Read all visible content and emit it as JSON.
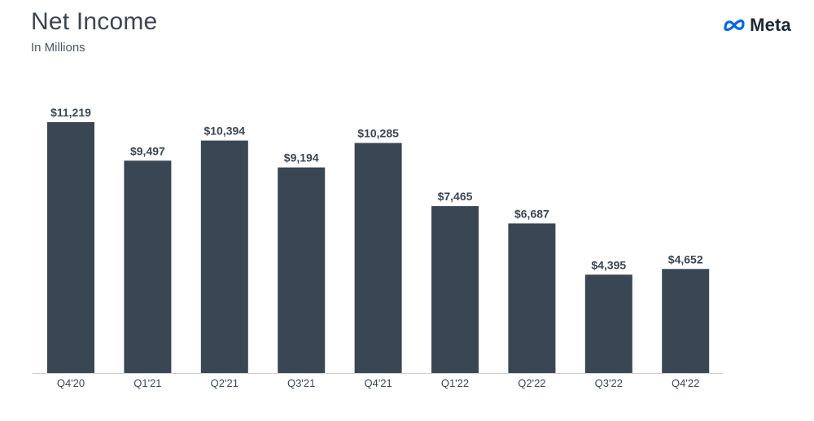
{
  "header": {
    "title": "Net Income",
    "subtitle": "In Millions"
  },
  "logo": {
    "icon": "meta-infinity-icon",
    "text": "Meta"
  },
  "colors": {
    "bar": "#394653",
    "text": "#3b4653",
    "axis": "#c8cdd2",
    "label": "#3b4653",
    "logo_blue": "#0668E1"
  },
  "chart_data": {
    "type": "bar",
    "title": "Net Income",
    "subtitle": "In Millions",
    "xlabel": "",
    "ylabel": "",
    "categories": [
      "Q4'20",
      "Q1'21",
      "Q2'21",
      "Q3'21",
      "Q4'21",
      "Q1'22",
      "Q2'22",
      "Q3'22",
      "Q4'22"
    ],
    "values": [
      11219,
      9497,
      10394,
      9194,
      10285,
      7465,
      6687,
      4395,
      4652
    ],
    "data_labels": [
      "$11,219",
      "$9,497",
      "$10,394",
      "$9,194",
      "$10,285",
      "$7,465",
      "$6,687",
      "$4,395",
      "$4,652"
    ],
    "ylim": [
      0,
      11219
    ],
    "grid": false,
    "legend": "none"
  }
}
